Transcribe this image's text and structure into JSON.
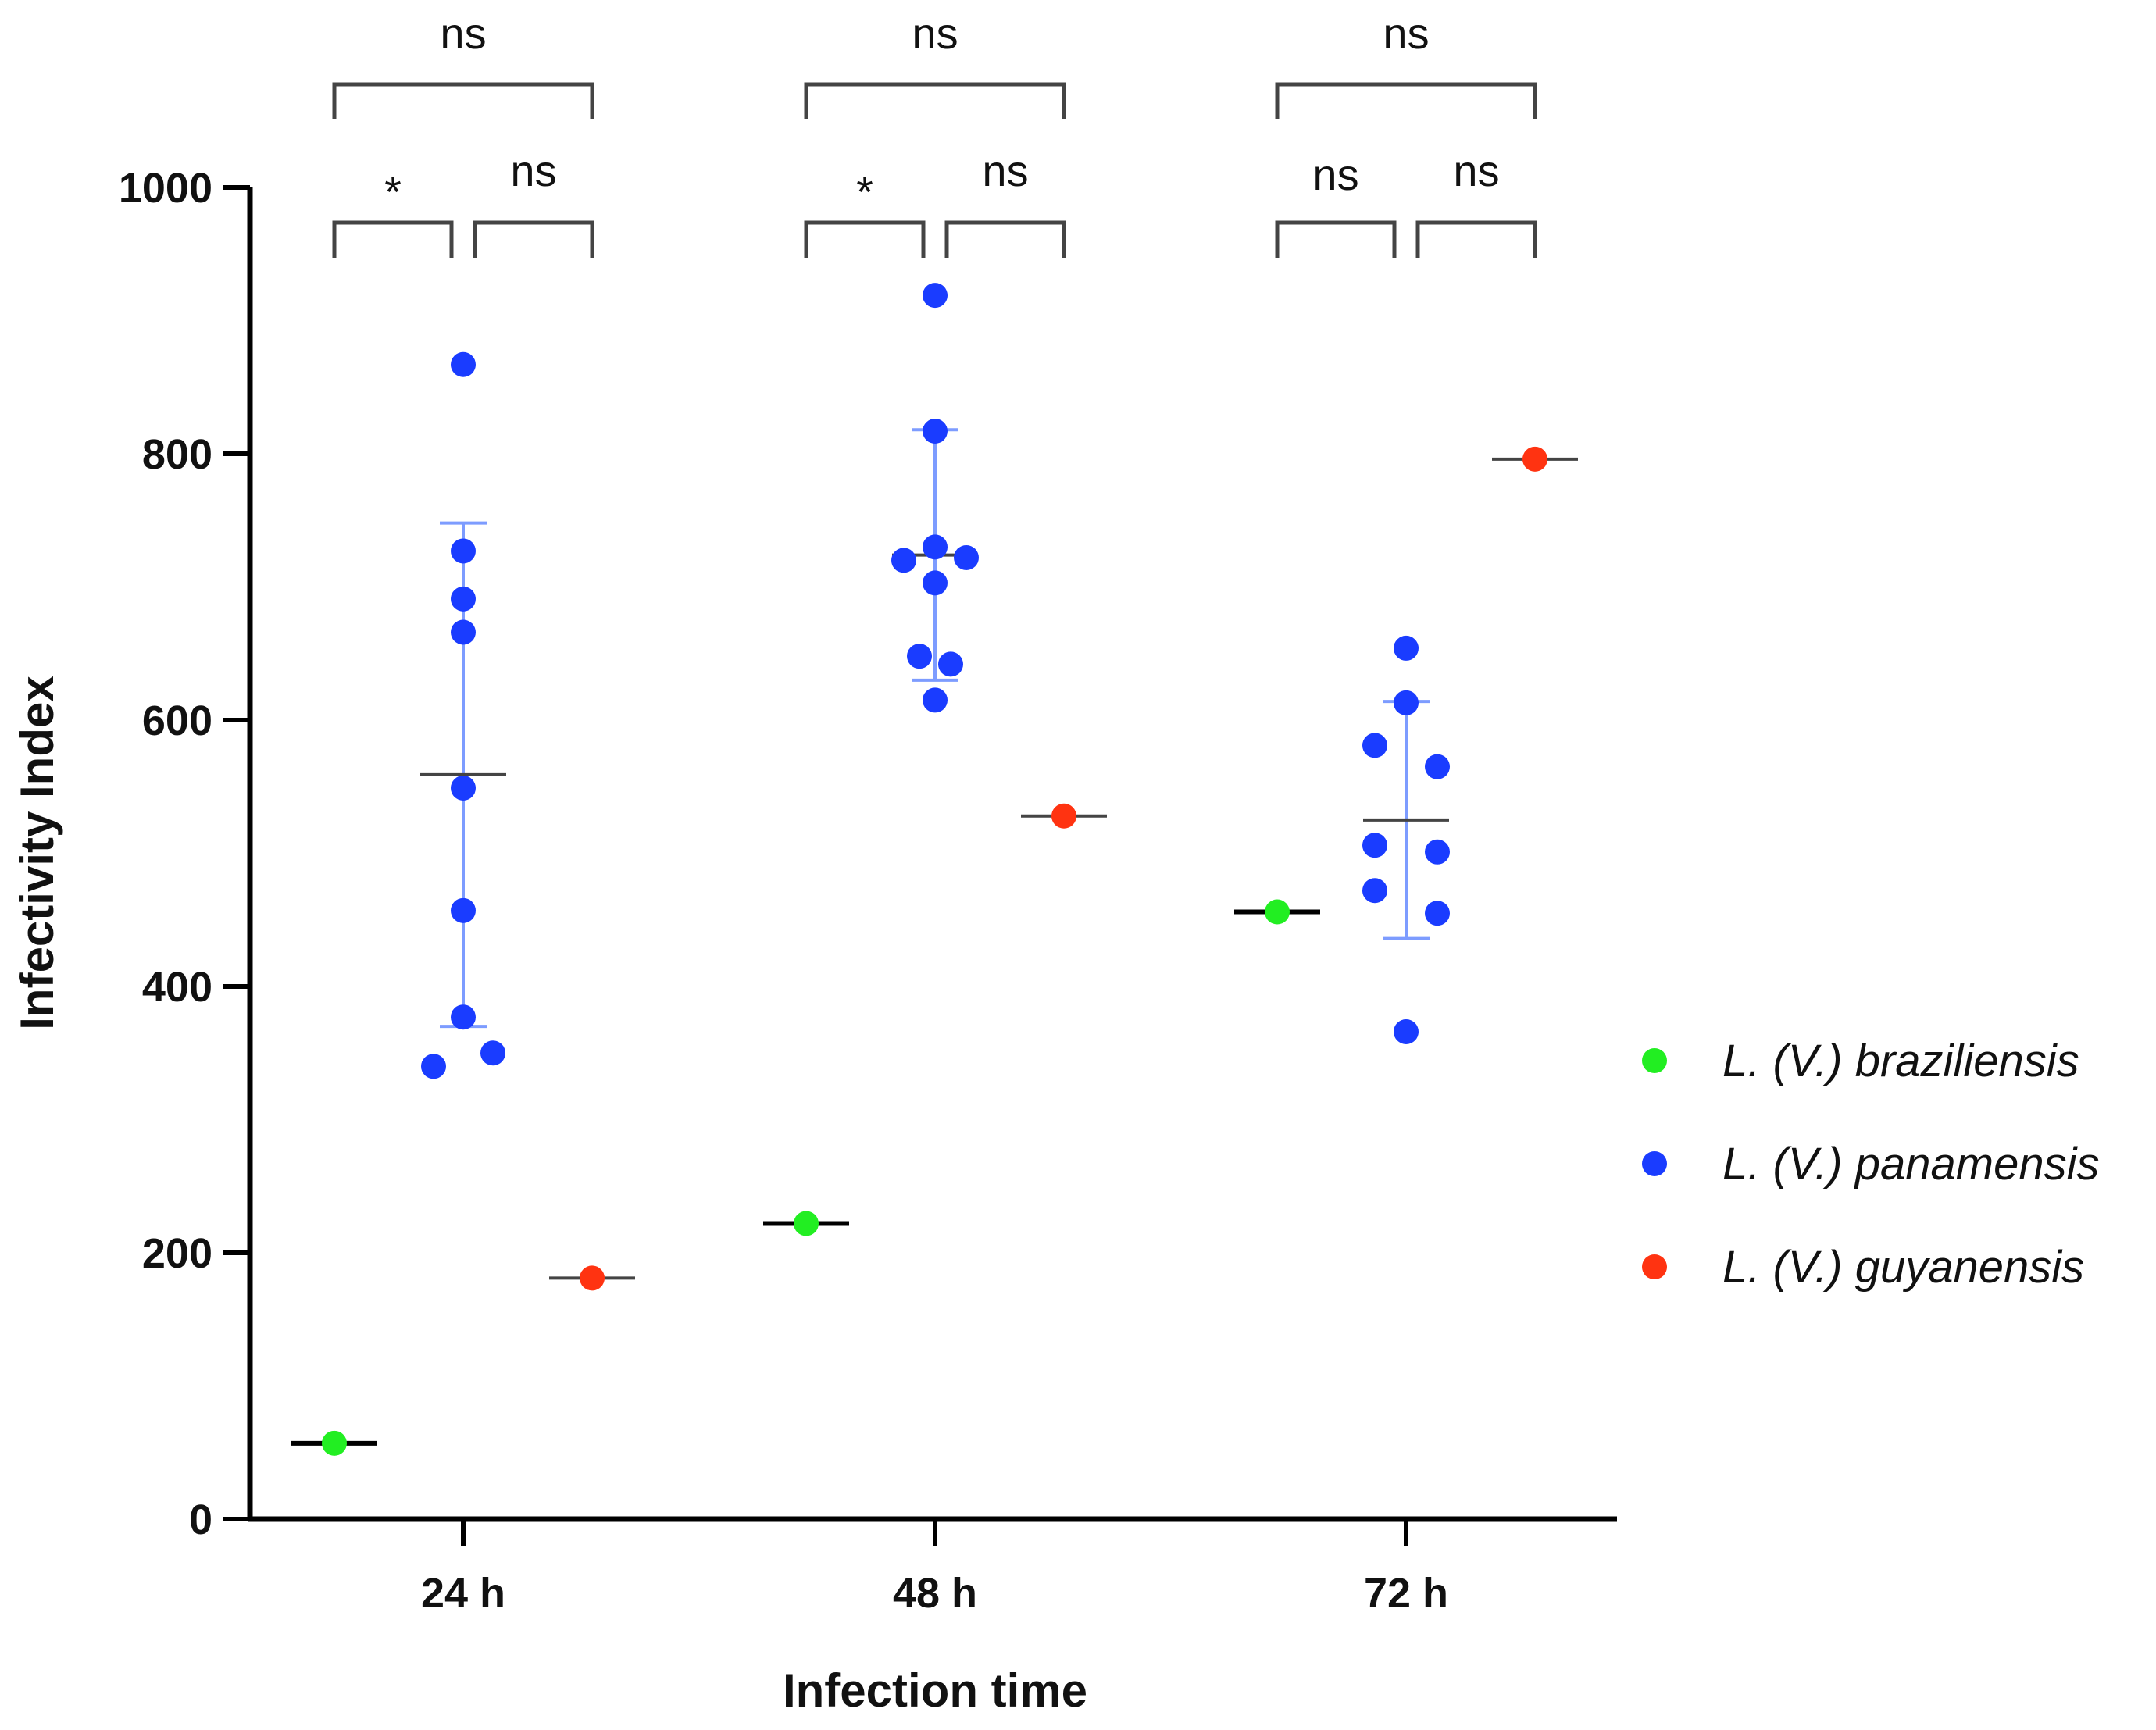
{
  "chart_data": {
    "type": "scatter",
    "title": "",
    "xlabel": "Infection time",
    "ylabel": "Infectivity Index",
    "ylim": [
      0,
      1000
    ],
    "yticks": [
      0,
      200,
      400,
      600,
      800,
      1000
    ],
    "categories": [
      "24 h",
      "48 h",
      "72 h"
    ],
    "legend_position": "right",
    "series": [
      {
        "name": "L. (V.) braziliensis",
        "color": "#22ee22",
        "groups": [
          {
            "category": "24 h",
            "points": [
              57
            ],
            "mean": 57
          },
          {
            "category": "48 h",
            "points": [
              222
            ],
            "mean": 222
          },
          {
            "category": "72 h",
            "points": [
              456
            ],
            "mean": 456
          }
        ]
      },
      {
        "name": "L. (V.) panamensis",
        "color": "#1a3cff",
        "groups": [
          {
            "category": "24 h",
            "points": [
              867,
              727,
              691,
              666,
              549,
              457,
              377,
              350,
              340
            ],
            "mean": 559,
            "sd_low": 370,
            "sd_high": 748
          },
          {
            "category": "48 h",
            "points": [
              919,
              817,
              730,
              722,
              720,
              703,
              648,
              642,
              615
            ],
            "mean": 724,
            "sd_low": 630,
            "sd_high": 818
          },
          {
            "category": "72 h",
            "points": [
              654,
              613,
              581,
              565,
              506,
              501,
              472,
              455,
              366
            ],
            "mean": 525,
            "sd_low": 436,
            "sd_high": 614
          }
        ]
      },
      {
        "name": "L. (V.) guyanensis",
        "color": "#ff3311",
        "groups": [
          {
            "category": "24 h",
            "points": [
              181
            ],
            "mean": 181
          },
          {
            "category": "48 h",
            "points": [
              528
            ],
            "mean": 528
          },
          {
            "category": "72 h",
            "points": [
              796
            ],
            "mean": 796
          }
        ]
      }
    ],
    "significance": [
      {
        "category": "24 h",
        "pair": "braziliensis-guyanensis",
        "label": "ns"
      },
      {
        "category": "24 h",
        "pair": "braziliensis-panamensis",
        "label": "*"
      },
      {
        "category": "24 h",
        "pair": "panamensis-guyanensis",
        "label": "ns"
      },
      {
        "category": "48 h",
        "pair": "braziliensis-guyanensis",
        "label": "ns"
      },
      {
        "category": "48 h",
        "pair": "braziliensis-panamensis",
        "label": "*"
      },
      {
        "category": "48 h",
        "pair": "panamensis-guyanensis",
        "label": "ns"
      },
      {
        "category": "72 h",
        "pair": "braziliensis-guyanensis",
        "label": "ns"
      },
      {
        "category": "72 h",
        "pair": "braziliensis-panamensis",
        "label": "ns"
      },
      {
        "category": "72 h",
        "pair": "panamensis-guyanensis",
        "label": "ns"
      }
    ]
  }
}
